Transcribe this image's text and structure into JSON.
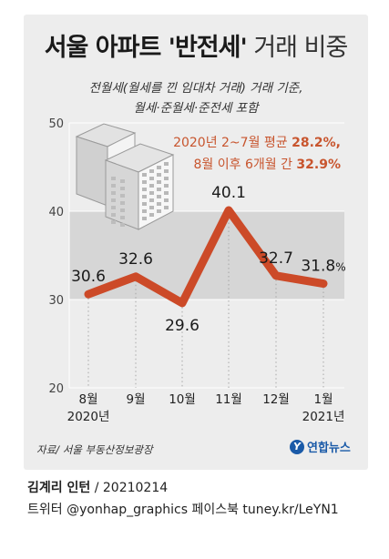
{
  "title": {
    "bold": "서울 아파트 '반전세'",
    "light": "거래 비중"
  },
  "subtitle": {
    "line1": "전월세(월세를 낀 임대차 거래) 거래 기준,",
    "line2": "월세·준월세·준전세 포함"
  },
  "annotation": {
    "line1_prefix": "2020년 2~7월 평균 ",
    "line1_value": "28.2%,",
    "line2_prefix": "8월 이후 6개월 간 ",
    "line2_value": "32.9%"
  },
  "chart_data": {
    "type": "line",
    "categories": [
      "8월",
      "9월",
      "10월",
      "11월",
      "12월",
      "1월"
    ],
    "year_labels": [
      "2020년",
      "",
      "",
      "",
      "",
      "2021년"
    ],
    "values": [
      30.6,
      32.6,
      29.6,
      40.1,
      32.7,
      31.8
    ],
    "value_labels": [
      "30.6",
      "32.6",
      "29.6",
      "40.1",
      "32.7",
      "31.8"
    ],
    "last_unit": "%",
    "yticks": [
      "20",
      "30",
      "40",
      "50"
    ],
    "ylim": [
      20,
      50
    ],
    "bands": [
      [
        30,
        40
      ]
    ],
    "colors": {
      "line": "#cc4a28",
      "band": "#d6d6d6",
      "annotation": "#c8552e"
    }
  },
  "source": "자료/ 서울 부동산정보광장",
  "logo": "연합뉴스",
  "credit": {
    "author": "김계리 인턴",
    "date": " / 20210214",
    "social": "트위터 @yonhap_graphics  페이스북 tuney.kr/LeYN1"
  }
}
